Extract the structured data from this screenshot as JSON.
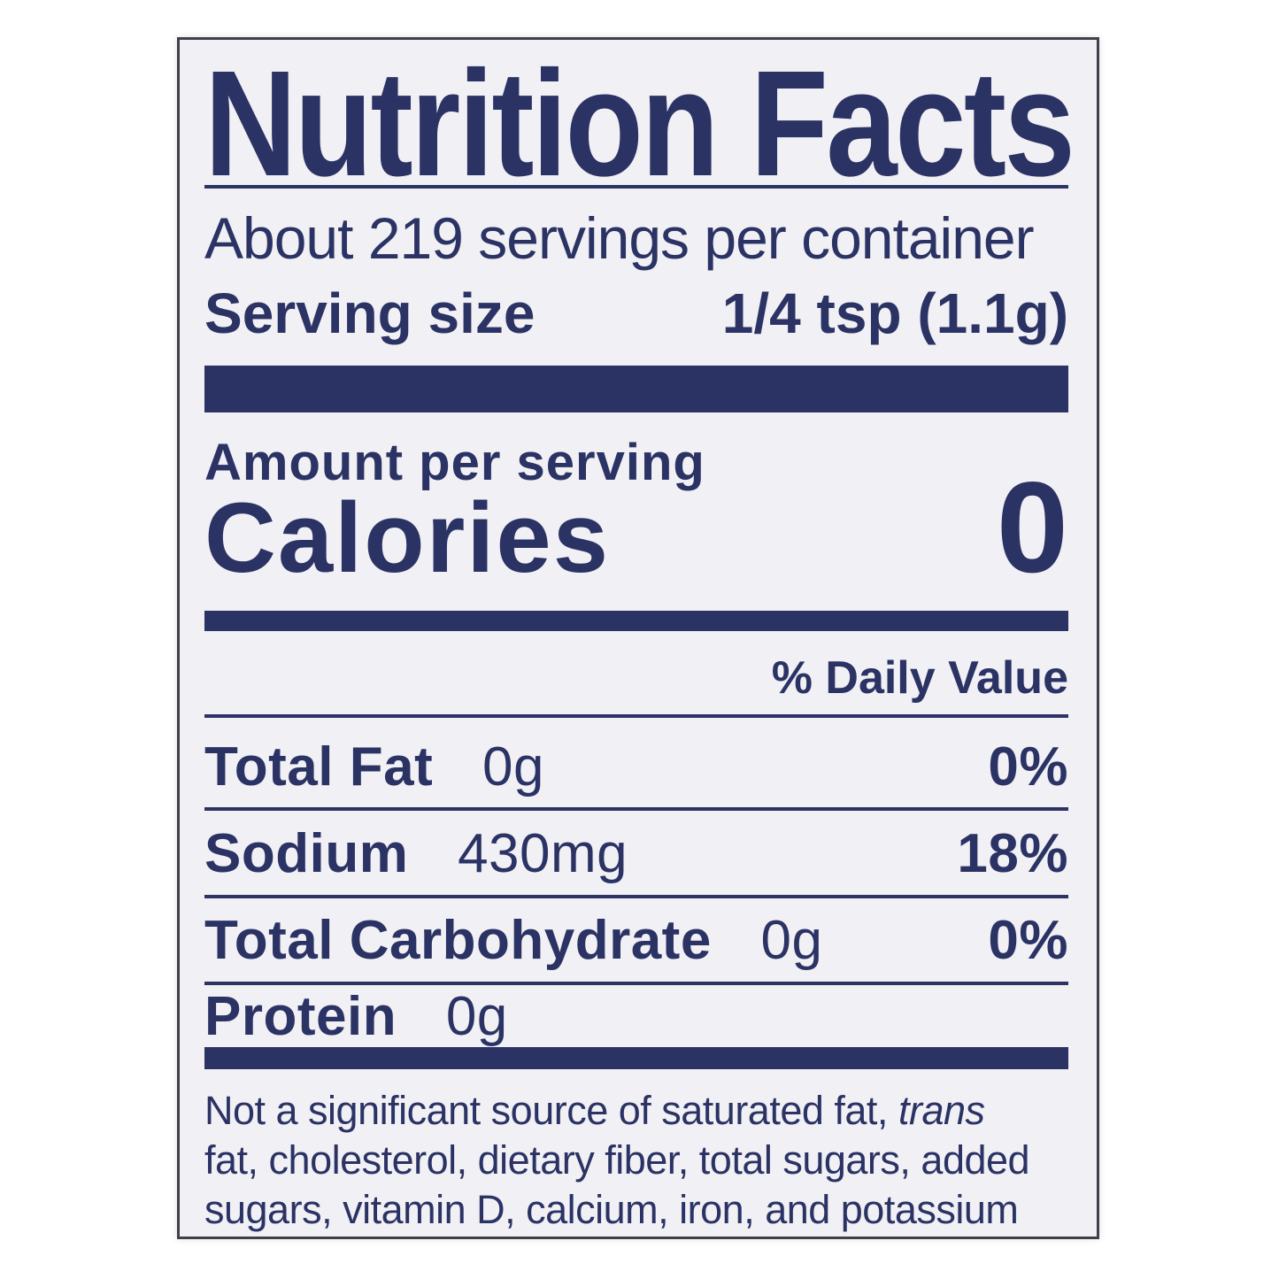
{
  "label": {
    "title": "Nutrition Facts",
    "servings_per_container": "About 219 servings per container",
    "serving_size_label": "Serving size",
    "serving_size_value": "1/4 tsp (1.1g)",
    "amount_per_serving": "Amount per serving",
    "calories_label": "Calories",
    "calories_value": "0",
    "daily_value_header": "% Daily Value",
    "nutrients": [
      {
        "name": "Total Fat",
        "amount": "0g",
        "dv": "0%"
      },
      {
        "name": "Sodium",
        "amount": "430mg",
        "dv": "18%"
      },
      {
        "name": "Total Carbohydrate",
        "amount": "0g",
        "dv": "0%"
      },
      {
        "name": "Protein",
        "amount": "0g",
        "dv": ""
      }
    ],
    "footnote": {
      "line1_regular": "Not a significant source of saturated fat,",
      "line1_italic": "trans",
      "line2": "fat, cholesterol, dietary fiber, total sugars, added",
      "line3": "sugars, vitamin D, calcium, iron, and potassium"
    },
    "colors": {
      "ink": "#2b3365",
      "label_background": "#f1f0f4",
      "page_background": "#ffffff",
      "border": "#3e4149"
    }
  }
}
